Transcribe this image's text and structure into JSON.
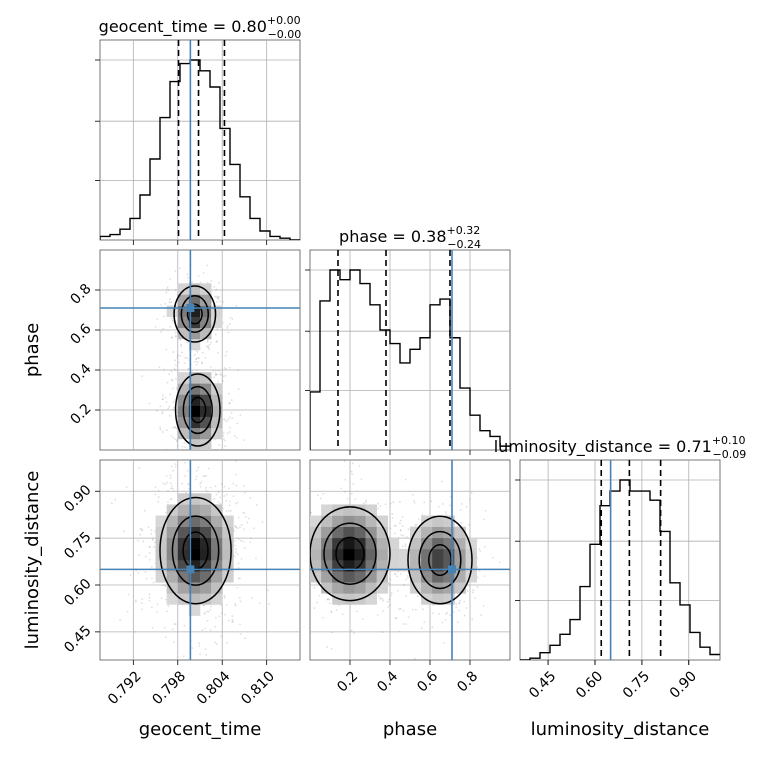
{
  "chart_data": {
    "type": "corner",
    "parameters": [
      {
        "name": "geocent_time",
        "xlabel": "geocent_time",
        "title_text": "geocent_time = 0.80",
        "title_sup": "+0.00",
        "title_sub": "−0.00",
        "range": [
          0.7875,
          0.8145
        ],
        "ticks": [
          0.792,
          0.798,
          0.804,
          0.81
        ],
        "tick_labels": [
          "0.792",
          "0.798",
          "0.804",
          "0.810"
        ],
        "quantiles": [
          0.7981,
          0.8008,
          0.8043
        ],
        "truth": 0.7997,
        "hist_edges": [
          0.7875,
          0.78885,
          0.7902,
          0.79155,
          0.7929,
          0.79425,
          0.7956,
          0.79695,
          0.7983,
          0.79965,
          0.801,
          0.80235,
          0.8037,
          0.80505,
          0.8064,
          0.80775,
          0.8091,
          0.81045,
          0.8118,
          0.81315,
          0.8145
        ],
        "hist_values": [
          0.02,
          0.03,
          0.06,
          0.12,
          0.25,
          0.45,
          0.68,
          0.88,
          0.98,
          1.0,
          0.94,
          0.85,
          0.62,
          0.42,
          0.24,
          0.12,
          0.05,
          0.02,
          0.01,
          0.0
        ]
      },
      {
        "name": "phase",
        "xlabel": "phase",
        "ylabel": "phase",
        "title_text": "phase = 0.38",
        "title_sup": "+0.32",
        "title_sub": "−0.24",
        "range": [
          0.0,
          1.0
        ],
        "ticks": [
          0.2,
          0.4,
          0.6,
          0.8
        ],
        "tick_labels": [
          "0.2",
          "0.4",
          "0.6",
          "0.8"
        ],
        "quantiles": [
          0.14,
          0.38,
          0.7
        ],
        "truth": 0.71,
        "hist_edges": [
          0.0,
          0.05,
          0.1,
          0.15,
          0.2,
          0.25,
          0.3,
          0.35,
          0.4,
          0.45,
          0.5,
          0.55,
          0.6,
          0.65,
          0.7,
          0.75,
          0.8,
          0.85,
          0.9,
          0.95,
          1.0
        ],
        "hist_values": [
          0.3,
          0.77,
          0.93,
          0.88,
          0.93,
          0.86,
          0.75,
          0.62,
          0.55,
          0.45,
          0.52,
          0.58,
          0.75,
          0.78,
          0.58,
          0.32,
          0.18,
          0.1,
          0.07,
          0.02
        ]
      },
      {
        "name": "luminosity_distance",
        "xlabel": "luminosity_distance",
        "ylabel": "luminosity_distance",
        "title_text": "luminosity_distance = 0.71",
        "title_sup": "+0.10",
        "title_sub": "−0.09",
        "range": [
          0.36,
          1.0
        ],
        "ticks": [
          0.45,
          0.6,
          0.75,
          0.9
        ],
        "tick_labels": [
          "0.45",
          "0.60",
          "0.75",
          "0.90"
        ],
        "quantiles": [
          0.62,
          0.71,
          0.81
        ],
        "truth": 0.65,
        "hist_edges": [
          0.36,
          0.392,
          0.424,
          0.456,
          0.488,
          0.52,
          0.552,
          0.584,
          0.616,
          0.648,
          0.68,
          0.712,
          0.744,
          0.776,
          0.808,
          0.84,
          0.872,
          0.904,
          0.936,
          0.968,
          1.0
        ],
        "hist_values": [
          0.0,
          0.01,
          0.04,
          0.08,
          0.14,
          0.22,
          0.4,
          0.63,
          0.84,
          0.92,
          0.98,
          0.92,
          0.92,
          0.87,
          0.7,
          0.42,
          0.3,
          0.15,
          0.07,
          0.03
        ]
      }
    ],
    "pairs": [
      {
        "x": "geocent_time",
        "y": "phase",
        "modes": [
          {
            "x": 0.8003,
            "y": 0.68,
            "sx": 0.0014,
            "sy": 0.07,
            "w": 0.85
          },
          {
            "x": 0.8007,
            "y": 0.2,
            "sx": 0.0015,
            "sy": 0.09,
            "w": 1.0
          }
        ]
      },
      {
        "x": "geocent_time",
        "y": "luminosity_distance",
        "modes": [
          {
            "x": 0.8004,
            "y": 0.71,
            "sx": 0.0024,
            "sy": 0.085,
            "w": 1.0
          }
        ]
      },
      {
        "x": "phase",
        "y": "luminosity_distance",
        "modes": [
          {
            "x": 0.2,
            "y": 0.7,
            "sx": 0.1,
            "sy": 0.075,
            "w": 1.0
          },
          {
            "x": 0.65,
            "y": 0.68,
            "sx": 0.08,
            "sy": 0.07,
            "w": 0.75
          }
        ]
      }
    ],
    "truth_color": "#4682b4",
    "contour_color": "#000000",
    "quantile_style": "dashed",
    "grid": true
  }
}
